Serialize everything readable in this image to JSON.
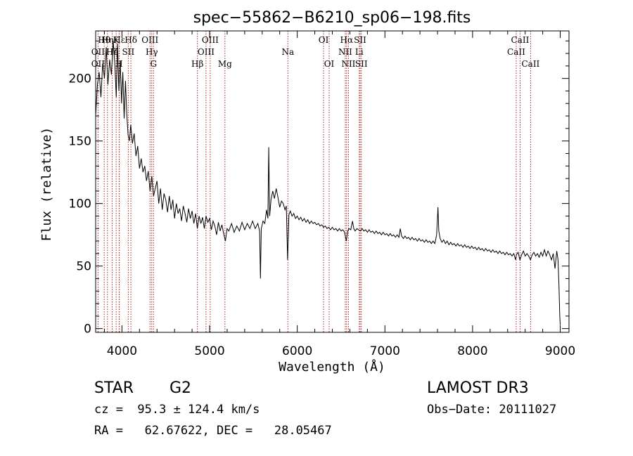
{
  "chart_data": {
    "type": "line",
    "title": "spec−55862−B6210_sp06−198.fits",
    "xlabel": "Wavelength (Å)",
    "ylabel": "Flux (relative)",
    "xlim": [
      3700,
      9100
    ],
    "ylim": [
      -3,
      238
    ],
    "x_ticks": [
      4000,
      5000,
      6000,
      7000,
      8000,
      9000
    ],
    "y_ticks": [
      0,
      50,
      100,
      150,
      200
    ],
    "grid": false,
    "legend": "none",
    "series": [
      {
        "name": "flux",
        "points": [
          [
            3700,
            170
          ],
          [
            3720,
            195
          ],
          [
            3740,
            205
          ],
          [
            3760,
            185
          ],
          [
            3780,
            212
          ],
          [
            3800,
            200
          ],
          [
            3820,
            225
          ],
          [
            3840,
            195
          ],
          [
            3860,
            215
          ],
          [
            3880,
            203
          ],
          [
            3900,
            230
          ],
          [
            3920,
            210
          ],
          [
            3935,
            185
          ],
          [
            3950,
            228
          ],
          [
            3965,
            190
          ],
          [
            3980,
            214
          ],
          [
            3995,
            180
          ],
          [
            4010,
            205
          ],
          [
            4025,
            168
          ],
          [
            4040,
            198
          ],
          [
            4055,
            172
          ],
          [
            4070,
            155
          ],
          [
            4085,
            150
          ],
          [
            4100,
            163
          ],
          [
            4120,
            148
          ],
          [
            4140,
            156
          ],
          [
            4160,
            138
          ],
          [
            4180,
            146
          ],
          [
            4200,
            128
          ],
          [
            4220,
            136
          ],
          [
            4240,
            125
          ],
          [
            4260,
            130
          ],
          [
            4280,
            118
          ],
          [
            4300,
            126
          ],
          [
            4320,
            110
          ],
          [
            4340,
            122
          ],
          [
            4360,
            106
          ],
          [
            4380,
            112
          ],
          [
            4400,
            118
          ],
          [
            4420,
            100
          ],
          [
            4440,
            112
          ],
          [
            4460,
            95
          ],
          [
            4480,
            108
          ],
          [
            4500,
            103
          ],
          [
            4520,
            93
          ],
          [
            4540,
            106
          ],
          [
            4560,
            95
          ],
          [
            4580,
            103
          ],
          [
            4600,
            88
          ],
          [
            4620,
            100
          ],
          [
            4640,
            92
          ],
          [
            4660,
            96
          ],
          [
            4680,
            86
          ],
          [
            4700,
            98
          ],
          [
            4720,
            92
          ],
          [
            4740,
            85
          ],
          [
            4760,
            96
          ],
          [
            4780,
            88
          ],
          [
            4800,
            94
          ],
          [
            4820,
            84
          ],
          [
            4840,
            92
          ],
          [
            4860,
            80
          ],
          [
            4880,
            90
          ],
          [
            4900,
            84
          ],
          [
            4920,
            89
          ],
          [
            4940,
            80
          ],
          [
            4960,
            90
          ],
          [
            4980,
            85
          ],
          [
            5000,
            88
          ],
          [
            5020,
            79
          ],
          [
            5040,
            86
          ],
          [
            5060,
            82
          ],
          [
            5080,
            75
          ],
          [
            5100,
            85
          ],
          [
            5120,
            78
          ],
          [
            5140,
            83
          ],
          [
            5160,
            76
          ],
          [
            5180,
            70
          ],
          [
            5200,
            80
          ],
          [
            5220,
            78
          ],
          [
            5250,
            84
          ],
          [
            5280,
            77
          ],
          [
            5310,
            82
          ],
          [
            5340,
            78
          ],
          [
            5370,
            85
          ],
          [
            5400,
            79
          ],
          [
            5430,
            84
          ],
          [
            5460,
            80
          ],
          [
            5490,
            86
          ],
          [
            5520,
            80
          ],
          [
            5550,
            84
          ],
          [
            5570,
            78
          ],
          [
            5580,
            40
          ],
          [
            5590,
            80
          ],
          [
            5610,
            86
          ],
          [
            5630,
            84
          ],
          [
            5650,
            95
          ],
          [
            5665,
            88
          ],
          [
            5675,
            145
          ],
          [
            5685,
            90
          ],
          [
            5700,
            103
          ],
          [
            5720,
            110
          ],
          [
            5740,
            104
          ],
          [
            5760,
            112
          ],
          [
            5780,
            105
          ],
          [
            5800,
            97
          ],
          [
            5820,
            102
          ],
          [
            5840,
            100
          ],
          [
            5860,
            95
          ],
          [
            5875,
            98
          ],
          [
            5890,
            55
          ],
          [
            5905,
            91
          ],
          [
            5920,
            94
          ],
          [
            5940,
            90
          ],
          [
            5960,
            92
          ],
          [
            5980,
            88
          ],
          [
            6000,
            90
          ],
          [
            6020,
            87
          ],
          [
            6040,
            89
          ],
          [
            6060,
            86
          ],
          [
            6080,
            88
          ],
          [
            6100,
            85
          ],
          [
            6120,
            87
          ],
          [
            6140,
            84
          ],
          [
            6160,
            86
          ],
          [
            6180,
            84
          ],
          [
            6200,
            85
          ],
          [
            6220,
            83
          ],
          [
            6240,
            84
          ],
          [
            6260,
            82
          ],
          [
            6280,
            83
          ],
          [
            6300,
            81
          ],
          [
            6320,
            82
          ],
          [
            6340,
            80
          ],
          [
            6360,
            81
          ],
          [
            6380,
            79
          ],
          [
            6400,
            81
          ],
          [
            6420,
            79
          ],
          [
            6440,
            80
          ],
          [
            6460,
            78
          ],
          [
            6480,
            80
          ],
          [
            6500,
            78
          ],
          [
            6520,
            79
          ],
          [
            6540,
            77
          ],
          [
            6560,
            70
          ],
          [
            6575,
            78
          ],
          [
            6590,
            80
          ],
          [
            6610,
            79
          ],
          [
            6630,
            86
          ],
          [
            6645,
            80
          ],
          [
            6660,
            78
          ],
          [
            6680,
            80
          ],
          [
            6700,
            79
          ],
          [
            6720,
            78
          ],
          [
            6740,
            80
          ],
          [
            6760,
            78
          ],
          [
            6780,
            79
          ],
          [
            6800,
            77
          ],
          [
            6820,
            79
          ],
          [
            6840,
            77
          ],
          [
            6860,
            78
          ],
          [
            6880,
            76
          ],
          [
            6900,
            78
          ],
          [
            6920,
            76
          ],
          [
            6940,
            77
          ],
          [
            6960,
            75
          ],
          [
            6980,
            77
          ],
          [
            7000,
            75
          ],
          [
            7020,
            76
          ],
          [
            7040,
            74
          ],
          [
            7060,
            76
          ],
          [
            7080,
            74
          ],
          [
            7100,
            75
          ],
          [
            7120,
            73
          ],
          [
            7140,
            75
          ],
          [
            7160,
            73
          ],
          [
            7175,
            80
          ],
          [
            7190,
            74
          ],
          [
            7210,
            72
          ],
          [
            7230,
            74
          ],
          [
            7250,
            72
          ],
          [
            7270,
            73
          ],
          [
            7290,
            71
          ],
          [
            7310,
            73
          ],
          [
            7330,
            71
          ],
          [
            7350,
            72
          ],
          [
            7370,
            70
          ],
          [
            7390,
            72
          ],
          [
            7410,
            70
          ],
          [
            7430,
            71
          ],
          [
            7450,
            69
          ],
          [
            7470,
            71
          ],
          [
            7490,
            69
          ],
          [
            7510,
            70
          ],
          [
            7530,
            68
          ],
          [
            7550,
            70
          ],
          [
            7570,
            68
          ],
          [
            7590,
            75
          ],
          [
            7605,
            97
          ],
          [
            7615,
            78
          ],
          [
            7630,
            72
          ],
          [
            7650,
            69
          ],
          [
            7670,
            71
          ],
          [
            7690,
            68
          ],
          [
            7710,
            70
          ],
          [
            7730,
            67
          ],
          [
            7750,
            69
          ],
          [
            7770,
            67
          ],
          [
            7790,
            68
          ],
          [
            7810,
            66
          ],
          [
            7830,
            68
          ],
          [
            7850,
            66
          ],
          [
            7870,
            67
          ],
          [
            7890,
            65
          ],
          [
            7910,
            67
          ],
          [
            7930,
            65
          ],
          [
            7950,
            66
          ],
          [
            7970,
            64
          ],
          [
            7990,
            66
          ],
          [
            8010,
            64
          ],
          [
            8030,
            65
          ],
          [
            8050,
            63
          ],
          [
            8070,
            65
          ],
          [
            8090,
            63
          ],
          [
            8110,
            64
          ],
          [
            8130,
            62
          ],
          [
            8150,
            64
          ],
          [
            8170,
            62
          ],
          [
            8190,
            63
          ],
          [
            8210,
            61
          ],
          [
            8230,
            63
          ],
          [
            8250,
            61
          ],
          [
            8270,
            62
          ],
          [
            8290,
            60
          ],
          [
            8310,
            62
          ],
          [
            8330,
            60
          ],
          [
            8350,
            61
          ],
          [
            8370,
            59
          ],
          [
            8390,
            61
          ],
          [
            8410,
            59
          ],
          [
            8430,
            60
          ],
          [
            8450,
            58
          ],
          [
            8470,
            60
          ],
          [
            8490,
            55
          ],
          [
            8500,
            59
          ],
          [
            8520,
            61
          ],
          [
            8540,
            55
          ],
          [
            8560,
            59
          ],
          [
            8580,
            62
          ],
          [
            8600,
            58
          ],
          [
            8620,
            60
          ],
          [
            8640,
            58
          ],
          [
            8660,
            55
          ],
          [
            8680,
            59
          ],
          [
            8700,
            61
          ],
          [
            8720,
            58
          ],
          [
            8740,
            60
          ],
          [
            8760,
            57
          ],
          [
            8780,
            61
          ],
          [
            8800,
            58
          ],
          [
            8820,
            63
          ],
          [
            8840,
            58
          ],
          [
            8860,
            62
          ],
          [
            8880,
            59
          ],
          [
            8900,
            55
          ],
          [
            8920,
            60
          ],
          [
            8940,
            48
          ],
          [
            8960,
            62
          ],
          [
            8975,
            55
          ],
          [
            8985,
            35
          ],
          [
            8995,
            10
          ],
          [
            9000,
            3
          ]
        ]
      }
    ],
    "lines": [
      {
        "label": "OII",
        "x": 3727,
        "row": 2
      },
      {
        "label": "OII",
        "x": 3727,
        "row": 3
      },
      {
        "label": "Hθ",
        "x": 3798,
        "row": 1
      },
      {
        "label": "Hη",
        "x": 3835,
        "row": 1
      },
      {
        "label": "Hζ",
        "x": 3889,
        "row": 2
      },
      {
        "label": "He",
        "x": 3889,
        "row": 2
      },
      {
        "label": "K",
        "x": 3934,
        "row": 1
      },
      {
        "label": "H",
        "x": 3968,
        "row": 3
      },
      {
        "label": "Hε",
        "x": 3970,
        "row": 1
      },
      {
        "label": "SII",
        "x": 4072,
        "row": 2
      },
      {
        "label": "Hδ",
        "x": 4102,
        "row": 1
      },
      {
        "label": "OIII",
        "x": 4320,
        "row": 1
      },
      {
        "label": "Hγ",
        "x": 4340,
        "row": 2
      },
      {
        "label": "G",
        "x": 4360,
        "row": 3
      },
      {
        "label": "Hβ",
        "x": 4861,
        "row": 3
      },
      {
        "label": "OIII",
        "x": 4959,
        "row": 2
      },
      {
        "label": "OIII",
        "x": 5007,
        "row": 1
      },
      {
        "label": "Mg",
        "x": 5175,
        "row": 3
      },
      {
        "label": "Na",
        "x": 5893,
        "row": 2
      },
      {
        "label": "OI",
        "x": 6300,
        "row": 1
      },
      {
        "label": "OI",
        "x": 6364,
        "row": 3
      },
      {
        "label": "NII",
        "x": 6548,
        "row": 2
      },
      {
        "label": "Hα",
        "x": 6563,
        "row": 1
      },
      {
        "label": "NII",
        "x": 6584,
        "row": 3
      },
      {
        "label": "Li",
        "x": 6707,
        "row": 2
      },
      {
        "label": "SII",
        "x": 6717,
        "row": 1
      },
      {
        "label": "SII",
        "x": 6731,
        "row": 3
      },
      {
        "label": "CaII",
        "x": 8498,
        "row": 2
      },
      {
        "label": "CaII",
        "x": 8542,
        "row": 1
      },
      {
        "label": "CaII",
        "x": 8662,
        "row": 3
      }
    ]
  },
  "info": {
    "class": "STAR",
    "subclass": "G2",
    "survey": "LAMOST DR3",
    "redshift": "cz =  95.3 ± 124.4 km/s",
    "obs_date": "Obs−Date: 20111027",
    "coords": "RA =   62.67622, DEC =   28.05467"
  }
}
